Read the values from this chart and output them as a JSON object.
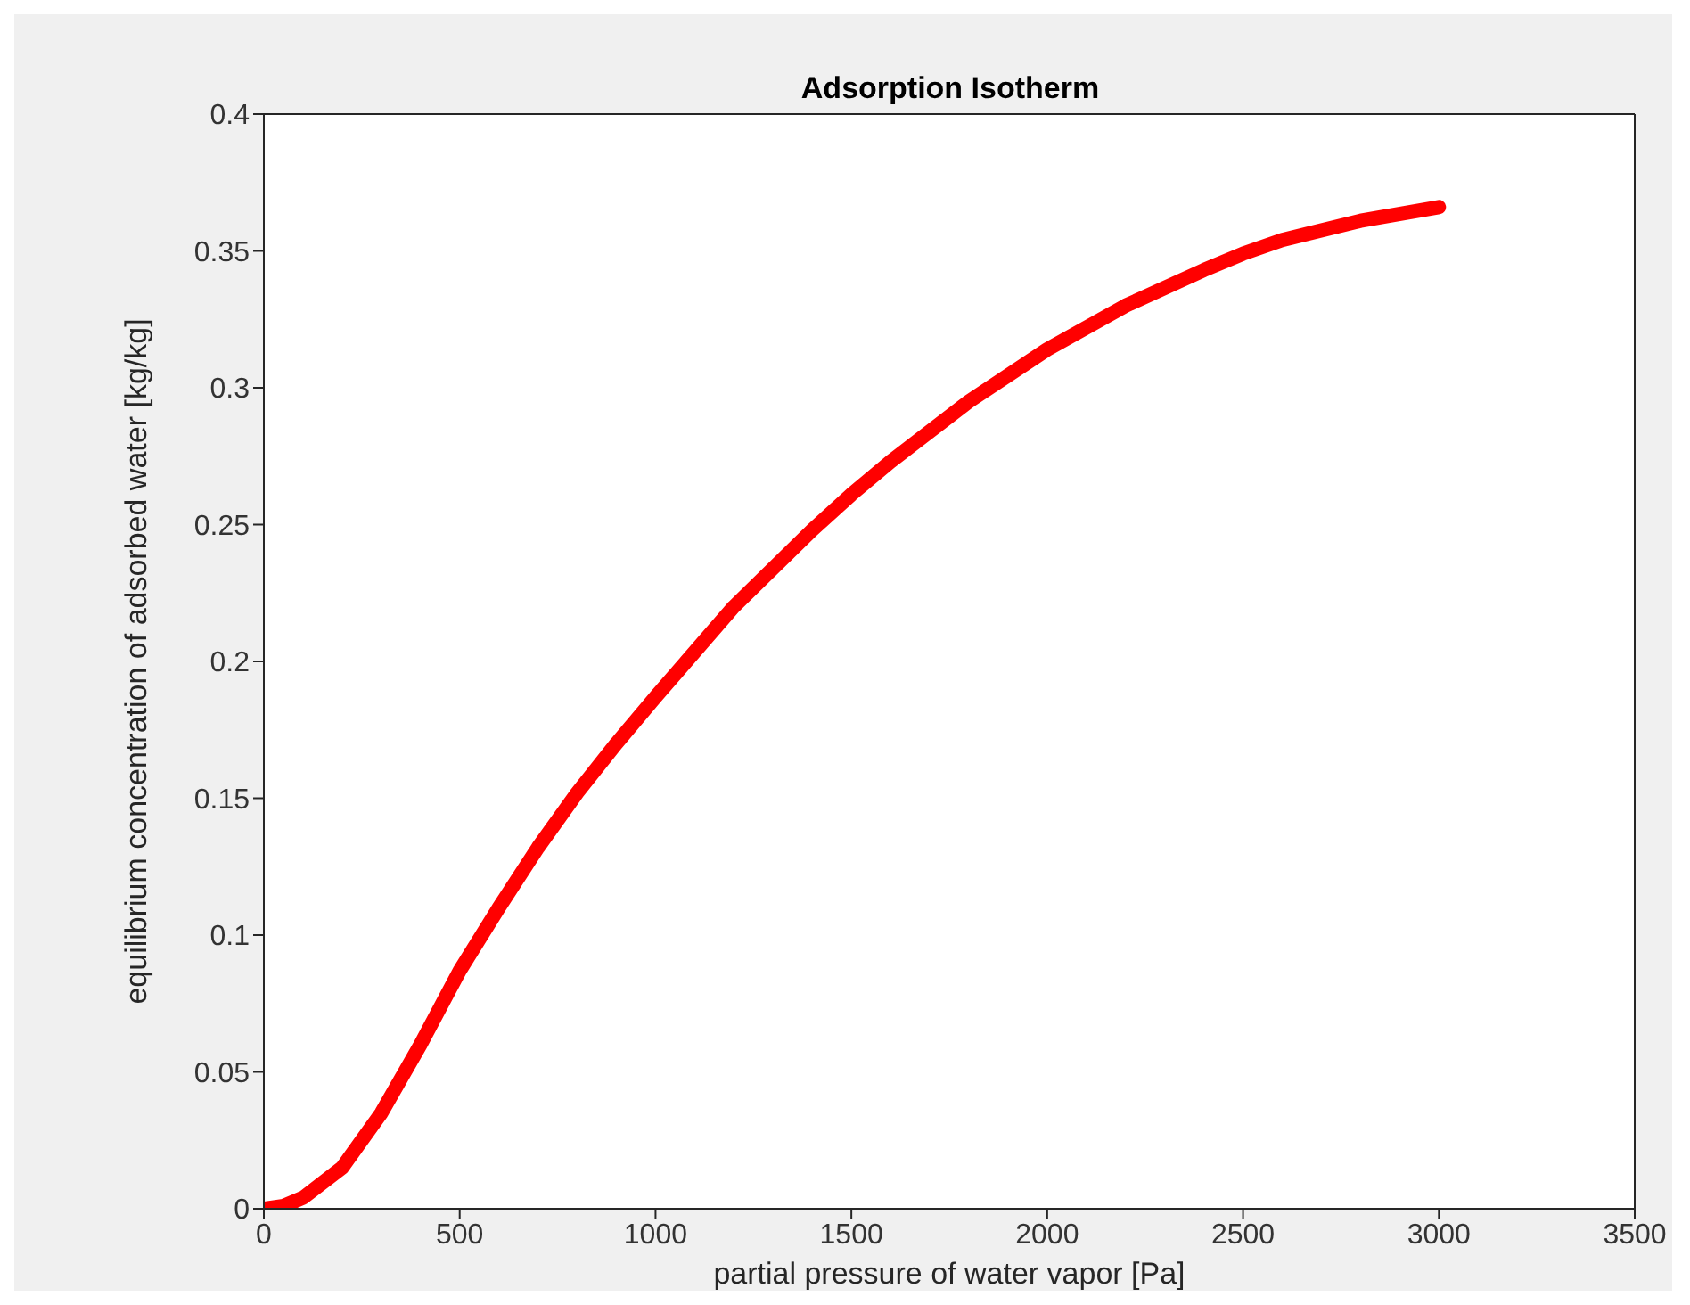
{
  "chart_data": {
    "type": "line",
    "title": "Adsorption Isotherm",
    "xlabel": "partial pressure of water vapor [Pa]",
    "ylabel": "equilibrium concentration of adsorbed water [kg/kg]",
    "x": [
      0,
      50,
      100,
      200,
      300,
      400,
      500,
      600,
      700,
      800,
      900,
      1000,
      1200,
      1400,
      1500,
      1600,
      1800,
      2000,
      2200,
      2400,
      2500,
      2600,
      2800,
      3000
    ],
    "series": [
      {
        "color": "#ff0000",
        "values": [
          0,
          0.001,
          0.004,
          0.015,
          0.035,
          0.06,
          0.087,
          0.11,
          0.132,
          0.152,
          0.17,
          0.187,
          0.22,
          0.248,
          0.261,
          0.273,
          0.295,
          0.314,
          0.33,
          0.343,
          0.349,
          0.354,
          0.361,
          0.366
        ]
      }
    ],
    "xlim": [
      0,
      3500
    ],
    "xticks": [
      0,
      500,
      1000,
      1500,
      2000,
      2500,
      3000,
      3500
    ],
    "ylim": [
      0,
      0.4
    ],
    "yticks": [
      0,
      0.05,
      0.1,
      0.15,
      0.2,
      0.25,
      0.3,
      0.35,
      0.4
    ],
    "grid": false,
    "legend": false,
    "marker": "none",
    "line_style": "solid"
  }
}
